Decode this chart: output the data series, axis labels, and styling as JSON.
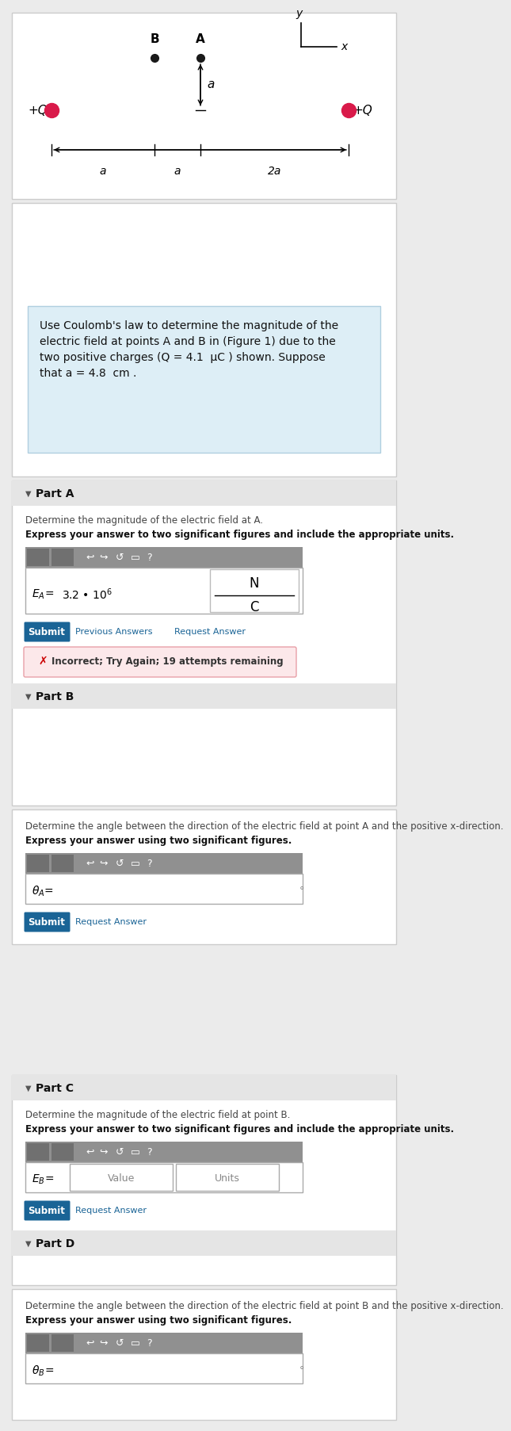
{
  "fig_bg": "#ebebeb",
  "panel1_bg": "#ffffff",
  "panel2_bg": "#ddeef6",
  "panel3_bg": "#ffffff",
  "panel_border": "#cccccc",
  "panel2_border": "#b0cfe0",
  "charge_color": "#d91a4a",
  "dot_color": "#1a1a1a",
  "submit_bg": "#1a6496",
  "incorrect_bg": "#fce8ea",
  "incorrect_border": "#e8a0a8",
  "toolbar_bg": "#909090",
  "toolbar_dark": "#707070",
  "title_line1": "Use Coulomb's law to determine the magnitude of the",
  "title_line2": "electric field at points A and B in (Figure 1) due to the",
  "title_line3": "two positive charges (Q = 4.1  μC ) shown. Suppose",
  "title_line4": "that a = 4.8  cm .",
  "partA_label": "Part A",
  "partA_desc": "Determine the magnitude of the electric field at A.",
  "partA_express": "Express your answer to two significant figures and include the appropriate units.",
  "partA_submit": "Submit",
  "partA_prev": "Previous Answers",
  "partA_req": "Request Answer",
  "partA_incorrect": "Incorrect; Try Again; 19 attempts remaining",
  "partB_label": "Part B",
  "partB_desc": "Determine the angle between the direction of the electric field at point A and the positive x-direction.",
  "partB_express": "Express your answer using two significant figures.",
  "partB_submit": "Submit",
  "partB_req": "Request Answer",
  "partC_label": "Part C",
  "partC_desc": "Determine the magnitude of the electric field at point B.",
  "partC_express": "Express your answer to two significant figures and include the appropriate units.",
  "partC_submit": "Submit",
  "partC_req": "Request Answer",
  "partD_label": "Part D",
  "partD_desc": "Determine the angle between the direction of the electric field at point B and the positive x-direction.",
  "partD_express": "Express your answer using two significant figures."
}
